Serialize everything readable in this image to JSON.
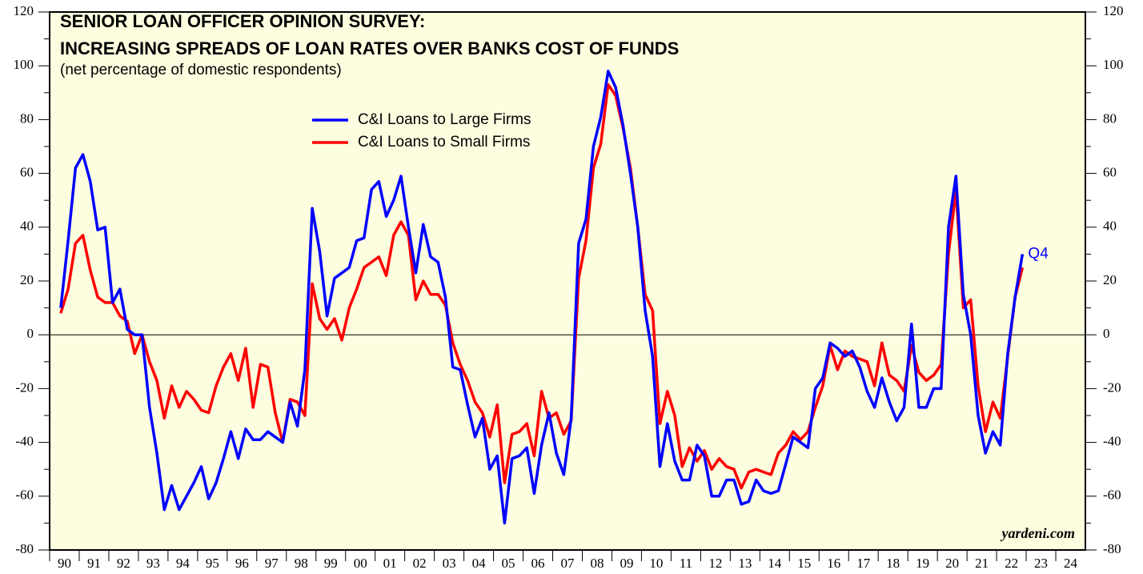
{
  "chart_data": {
    "type": "line",
    "title": "SENIOR LOAN OFFICER OPINION SURVEY:",
    "title_line2": "INCREASING SPREADS OF LOAN RATES OVER BANKS COST OF FUNDS",
    "subtitle": "(net percentage of domestic respondents)",
    "annotation": "Q4",
    "source": "yardeni.com",
    "x": [
      1990.375,
      1990.625,
      1990.875,
      1991.125,
      1991.375,
      1991.625,
      1991.875,
      1992.125,
      1992.375,
      1992.625,
      1992.875,
      1993.125,
      1993.375,
      1993.625,
      1993.875,
      1994.125,
      1994.375,
      1994.625,
      1994.875,
      1995.125,
      1995.375,
      1995.625,
      1995.875,
      1996.125,
      1996.375,
      1996.625,
      1996.875,
      1997.125,
      1997.375,
      1997.625,
      1997.875,
      1998.125,
      1998.375,
      1998.625,
      1998.875,
      1999.125,
      1999.375,
      1999.625,
      1999.875,
      2000.125,
      2000.375,
      2000.625,
      2000.875,
      2001.125,
      2001.375,
      2001.625,
      2001.875,
      2002.125,
      2002.375,
      2002.625,
      2002.875,
      2003.125,
      2003.375,
      2003.625,
      2003.875,
      2004.125,
      2004.375,
      2004.625,
      2004.875,
      2005.125,
      2005.375,
      2005.625,
      2005.875,
      2006.125,
      2006.375,
      2006.625,
      2006.875,
      2007.125,
      2007.375,
      2007.625,
      2007.875,
      2008.125,
      2008.375,
      2008.625,
      2008.875,
      2009.125,
      2009.375,
      2009.625,
      2009.875,
      2010.125,
      2010.375,
      2010.625,
      2010.875,
      2011.125,
      2011.375,
      2011.625,
      2011.875,
      2012.125,
      2012.375,
      2012.625,
      2012.875,
      2013.125,
      2013.375,
      2013.625,
      2013.875,
      2014.125,
      2014.375,
      2014.625,
      2014.875,
      2015.125,
      2015.375,
      2015.625,
      2015.875,
      2016.125,
      2016.375,
      2016.625,
      2016.875,
      2017.125,
      2017.375,
      2017.625,
      2017.875,
      2018.125,
      2018.375,
      2018.625,
      2018.875,
      2019.125,
      2019.375,
      2019.625,
      2019.875,
      2020.125,
      2020.375,
      2020.625,
      2020.875,
      2021.125,
      2021.375,
      2021.625,
      2021.875,
      2022.125,
      2022.375,
      2022.625,
      2022.875
    ],
    "series": [
      {
        "name": "C&I Loans to Large Firms",
        "color": "#0000ff",
        "values": [
          10,
          35,
          62,
          67,
          57,
          39,
          40,
          12,
          17,
          2,
          0,
          0,
          -27,
          -44,
          -65,
          -56,
          -65,
          -60,
          -55,
          -49,
          -61,
          -55,
          -46,
          -36,
          -46,
          -35,
          -39,
          -39,
          -36,
          -38,
          -40,
          -25,
          -34,
          -13,
          47,
          31,
          7,
          21,
          23,
          25,
          35,
          36,
          54,
          57,
          44,
          50,
          59,
          40,
          23,
          41,
          29,
          27,
          14,
          -12,
          -13,
          -26,
          -38,
          -31,
          -50,
          -45,
          -70,
          -46,
          -45,
          -42,
          -59,
          -41,
          -29,
          -44,
          -52,
          -31,
          34,
          43,
          70,
          81,
          98,
          92,
          78,
          60,
          40,
          9,
          -8,
          -49,
          -33,
          -47,
          -54,
          -54,
          -41,
          -45,
          -60,
          -60,
          -54,
          -54,
          -63,
          -62,
          -54,
          -58,
          -59,
          -58,
          -48,
          -38,
          -40,
          -42,
          -20,
          -16,
          -3,
          -5,
          -8,
          -6,
          -12,
          -21,
          -27,
          -16,
          -25,
          -32,
          -27,
          4,
          -27,
          -27,
          -20,
          -20,
          40,
          59,
          15,
          0,
          -30,
          -44,
          -36,
          -41,
          -7,
          14,
          30
        ]
      },
      {
        "name": "C&I Loans to Small Firms",
        "color": "#ff0000",
        "values": [
          8,
          17,
          34,
          37,
          24,
          14,
          12,
          12,
          7,
          5,
          -7,
          0,
          -10,
          -17,
          -31,
          -19,
          -27,
          -21,
          -24,
          -28,
          -29,
          -19,
          -12,
          -7,
          -17,
          -5,
          -27,
          -11,
          -12,
          -29,
          -40,
          -24,
          -25,
          -30,
          19,
          6,
          2,
          6,
          -2,
          10,
          17,
          25,
          27,
          29,
          22,
          37,
          42,
          37,
          13,
          20,
          15,
          15,
          11,
          -3,
          -11,
          -17,
          -25,
          -29,
          -38,
          -26,
          -55,
          -37,
          -36,
          -33,
          -45,
          -21,
          -31,
          -29,
          -37,
          -32,
          21,
          35,
          62,
          71,
          93,
          89,
          77,
          62,
          40,
          15,
          9,
          -33,
          -21,
          -30,
          -49,
          -42,
          -47,
          -43,
          -50,
          -46,
          -49,
          -50,
          -57,
          -51,
          -50,
          -51,
          -52,
          -44,
          -41,
          -36,
          -39,
          -36,
          -27,
          -19,
          -4,
          -13,
          -6,
          -8,
          -9,
          -10,
          -19,
          -3,
          -15,
          -17,
          -21,
          -4,
          -14,
          -17,
          -15,
          -11,
          30,
          54,
          10,
          13,
          -19,
          -36,
          -25,
          -31,
          -8,
          14,
          25
        ]
      }
    ],
    "xlim": [
      1990,
      2025
    ],
    "xticks": [
      {
        "value": 1990,
        "label": "90"
      },
      {
        "value": 1991,
        "label": "91"
      },
      {
        "value": 1992,
        "label": "92"
      },
      {
        "value": 1993,
        "label": "93"
      },
      {
        "value": 1994,
        "label": "94"
      },
      {
        "value": 1995,
        "label": "95"
      },
      {
        "value": 1996,
        "label": "96"
      },
      {
        "value": 1997,
        "label": "97"
      },
      {
        "value": 1998,
        "label": "98"
      },
      {
        "value": 1999,
        "label": "99"
      },
      {
        "value": 2000,
        "label": "00"
      },
      {
        "value": 2001,
        "label": "01"
      },
      {
        "value": 2002,
        "label": "02"
      },
      {
        "value": 2003,
        "label": "03"
      },
      {
        "value": 2004,
        "label": "04"
      },
      {
        "value": 2005,
        "label": "05"
      },
      {
        "value": 2006,
        "label": "06"
      },
      {
        "value": 2007,
        "label": "07"
      },
      {
        "value": 2008,
        "label": "08"
      },
      {
        "value": 2009,
        "label": "09"
      },
      {
        "value": 2010,
        "label": "10"
      },
      {
        "value": 2011,
        "label": "11"
      },
      {
        "value": 2012,
        "label": "12"
      },
      {
        "value": 2013,
        "label": "13"
      },
      {
        "value": 2014,
        "label": "14"
      },
      {
        "value": 2015,
        "label": "15"
      },
      {
        "value": 2016,
        "label": "16"
      },
      {
        "value": 2017,
        "label": "17"
      },
      {
        "value": 2018,
        "label": "18"
      },
      {
        "value": 2019,
        "label": "19"
      },
      {
        "value": 2020,
        "label": "20"
      },
      {
        "value": 2021,
        "label": "21"
      },
      {
        "value": 2022,
        "label": "22"
      },
      {
        "value": 2023,
        "label": "23"
      },
      {
        "value": 2024,
        "label": "24"
      }
    ],
    "ylim": [
      -80,
      120
    ],
    "yticks": [
      -80,
      -60,
      -40,
      -20,
      0,
      20,
      40,
      60,
      80,
      100,
      120
    ],
    "y2lim": [
      -80,
      120
    ],
    "y2ticks": [
      -80,
      -60,
      -40,
      -20,
      0,
      20,
      40,
      60,
      80,
      100,
      120
    ]
  }
}
